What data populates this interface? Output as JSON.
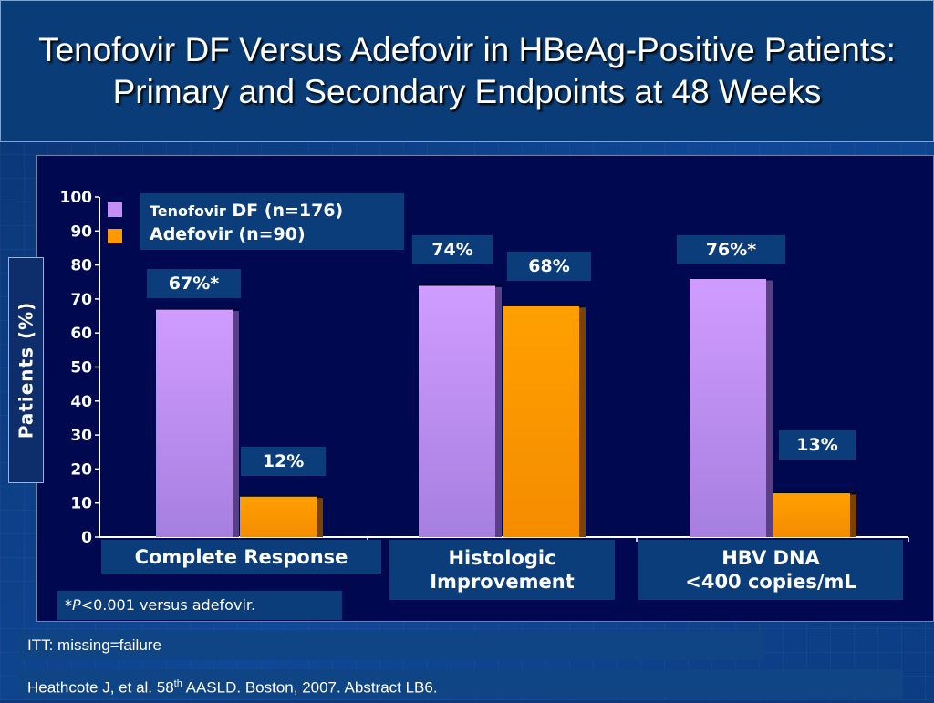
{
  "slide": {
    "title": "Tenofovir DF Versus Adefovir in HBeAg-Positive Patients: Primary and Secondary Endpoints at 48 Weeks",
    "footnote_star": "*",
    "footnote_p": "P",
    "footnote_rest": "<0.001 versus adefovir.",
    "itt_note": "ITT: missing=failure",
    "ref_pre": "Heathcote J, et al. 58",
    "ref_sup": "th",
    "ref_post": " AASLD. Boston, 2007. Abstract LB6."
  },
  "legend": {
    "tenofovir_brand": "Tenofovir",
    "tenofovir_rest": " DF (n=176)",
    "adefovir": "Adefovir (n=90)"
  },
  "chart_data": {
    "type": "bar",
    "ylabel": "Patients (%)",
    "ylim": [
      0,
      100
    ],
    "yticks": [
      "0",
      "10",
      "20",
      "30",
      "40",
      "50",
      "60",
      "70",
      "80",
      "90",
      "100"
    ],
    "categories": [
      [
        "Complete Response"
      ],
      [
        "Histologic",
        "Improvement"
      ],
      [
        "HBV DNA",
        "<400 copies/mL"
      ]
    ],
    "series": [
      {
        "name": "Tenofovir DF (n=176)",
        "color": "#c48ef5",
        "values": [
          67,
          74,
          76
        ],
        "labels": [
          "67%*",
          "74%",
          "76%*"
        ]
      },
      {
        "name": "Adefovir (n=90)",
        "color": "#ff9900",
        "values": [
          12,
          68,
          13
        ],
        "labels": [
          "12%",
          "68%",
          "13%"
        ]
      }
    ],
    "legend_position": "top-left",
    "grid": false
  }
}
